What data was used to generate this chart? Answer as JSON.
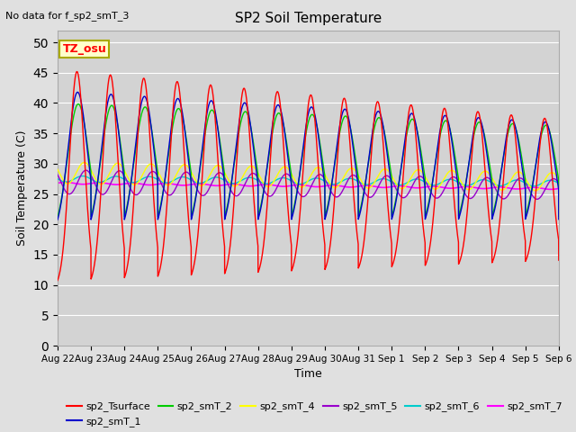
{
  "title": "SP2 Soil Temperature",
  "no_data_label": "No data for f_sp2_smT_3",
  "tz_label": "TZ_osu",
  "ylabel": "Soil Temperature (C)",
  "xlabel": "Time",
  "ylim": [
    0,
    52
  ],
  "yticks": [
    0,
    5,
    10,
    15,
    20,
    25,
    30,
    35,
    40,
    45,
    50
  ],
  "background_color": "#e0e0e0",
  "plot_bg_color": "#d3d3d3",
  "colors": {
    "sp2_Tsurface": "#ff0000",
    "sp2_smT_1": "#0000cc",
    "sp2_smT_2": "#00cc00",
    "sp2_smT_4": "#ffff00",
    "sp2_smT_5": "#9900cc",
    "sp2_smT_6": "#00cccc",
    "sp2_smT_7": "#ff00ff"
  },
  "x_tick_labels": [
    "Aug 22",
    "Aug 23",
    "Aug 24",
    "Aug 25",
    "Aug 26",
    "Aug 27",
    "Aug 28",
    "Aug 29",
    "Aug 30",
    "Aug 31",
    "Sep 1",
    "Sep 2",
    "Sep 3",
    "Sep 4",
    "Sep 5",
    "Sep 6"
  ]
}
